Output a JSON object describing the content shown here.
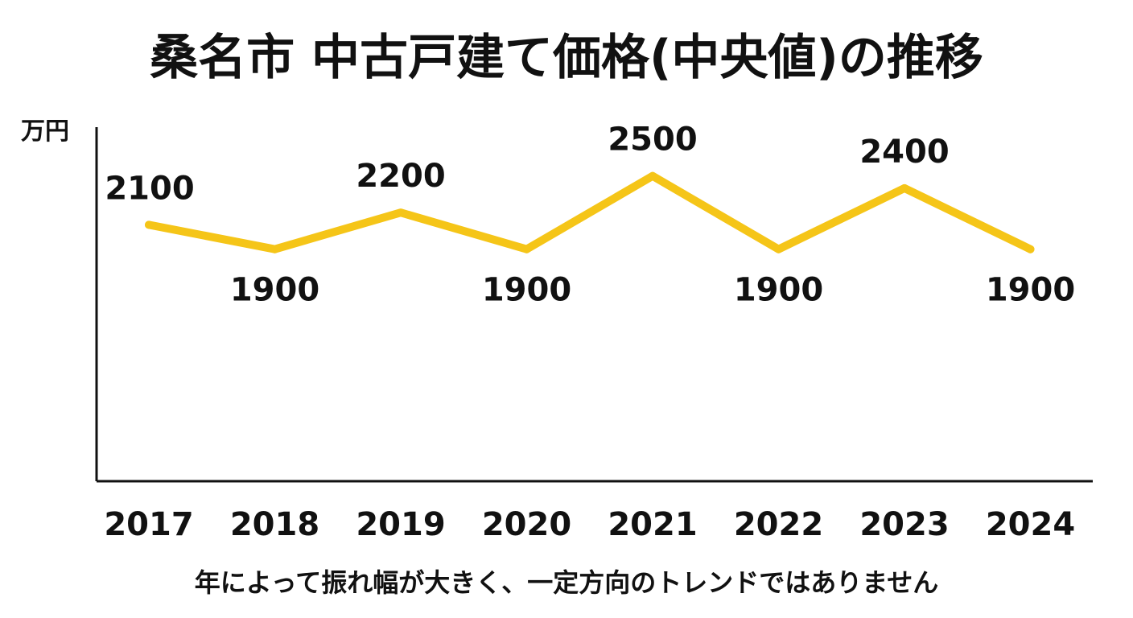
{
  "chart_data": {
    "type": "line",
    "title": "桑名市 中古戸建て価格(中央値)の推移",
    "ylabel": "万円",
    "xlabel": "",
    "categories": [
      "2017",
      "2018",
      "2019",
      "2020",
      "2021",
      "2022",
      "2023",
      "2024"
    ],
    "series": [
      {
        "values": [
          2100,
          1900,
          2200,
          1900,
          2500,
          1900,
          2400,
          1900
        ],
        "color": "#f5c518"
      }
    ],
    "data_labels": [
      "2100",
      "1900",
      "2200",
      "1900",
      "2500",
      "1900",
      "2400",
      "1900"
    ],
    "ylim": [
      0,
      2900
    ],
    "grid": false,
    "legend": "none"
  },
  "caption": "年によって振れ幅が大きく、一定方向のトレンドではありません"
}
